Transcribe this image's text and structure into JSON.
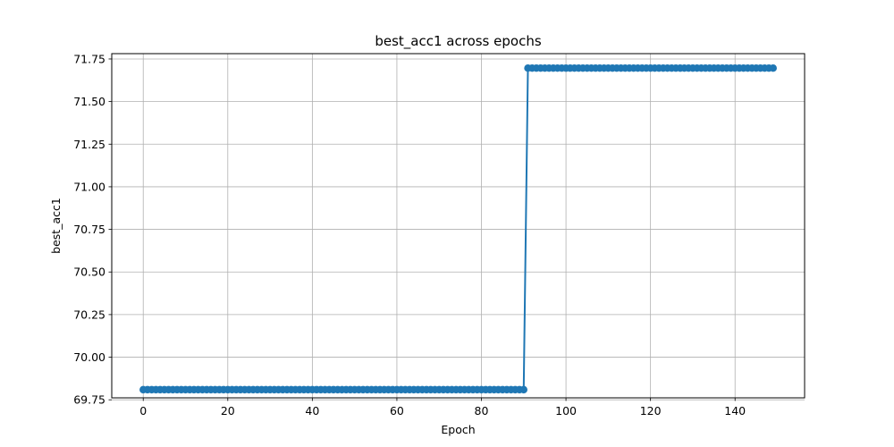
{
  "chart_data": {
    "type": "line",
    "title": "best_acc1 across epochs",
    "xlabel": "Epoch",
    "ylabel": "best_acc1",
    "xlim": [
      -7.45,
      156.45
    ],
    "ylim": [
      69.7615,
      71.7813
    ],
    "x_ticks": [
      0,
      20,
      40,
      60,
      80,
      100,
      120,
      140
    ],
    "y_ticks": [
      69.75,
      70.0,
      70.25,
      70.5,
      70.75,
      71.0,
      71.25,
      71.5,
      71.75
    ],
    "grid": true,
    "legend": "none",
    "series": [
      {
        "color": "#1f77b4",
        "marker": "circle",
        "segments": [
          {
            "x_start": 0,
            "x_end": 90,
            "y": 69.8094
          },
          {
            "x_start": 91,
            "x_end": 149,
            "y": 71.6963
          }
        ]
      }
    ]
  }
}
